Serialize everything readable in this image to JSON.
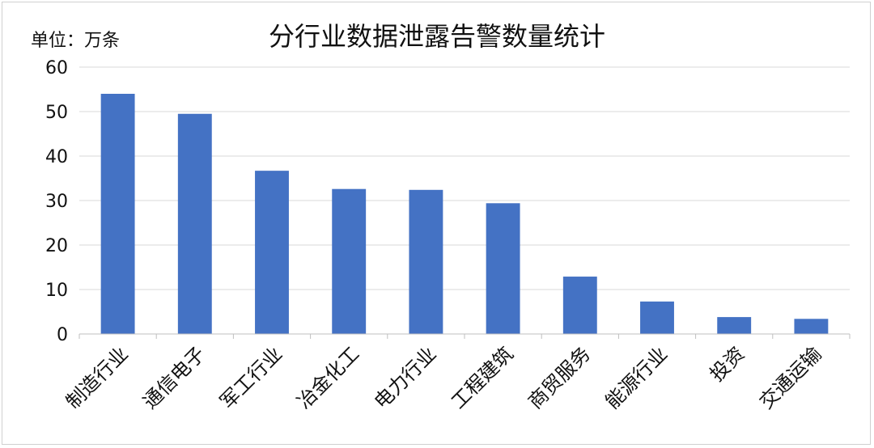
{
  "chart_data": {
    "type": "bar",
    "title": "分行业数据泄露告警数量统计",
    "unit_label": "单位：万条",
    "categories": [
      "制造行业",
      "通信电子",
      "军工行业",
      "冶金化工",
      "电力行业",
      "工程建筑",
      "商贸服务",
      "能源行业",
      "投资",
      "交通运输"
    ],
    "values": [
      54.0,
      49.5,
      36.7,
      32.6,
      32.4,
      29.4,
      12.9,
      7.3,
      3.8,
      3.4
    ],
    "ylim": [
      0,
      60
    ],
    "yticks": [
      "0",
      "10",
      "20",
      "30",
      "40",
      "50",
      "60"
    ],
    "grid": true,
    "bar_color": "#4472C4",
    "gridline_color": "#d9d9d9"
  }
}
